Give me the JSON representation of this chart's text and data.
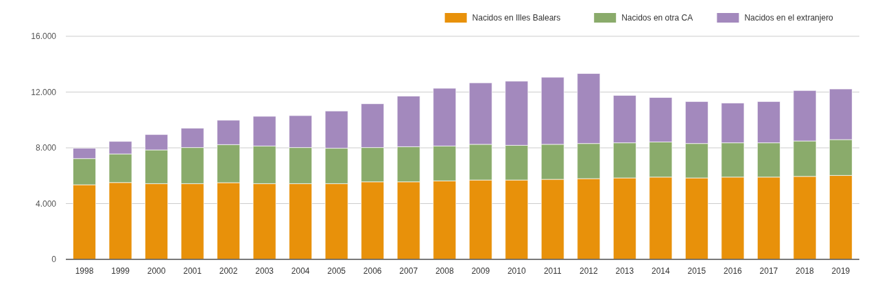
{
  "chart_data": {
    "type": "bar",
    "stacked": true,
    "grid": "y",
    "legend": "top right",
    "categories": [
      "1998",
      "1999",
      "2000",
      "2001",
      "2002",
      "2003",
      "2004",
      "2005",
      "2006",
      "2007",
      "2008",
      "2009",
      "2010",
      "2011",
      "2012",
      "2013",
      "2014",
      "2015",
      "2016",
      "2017",
      "2018",
      "2019"
    ],
    "series": [
      {
        "name": "Nacidos en Illes Balears",
        "color": "#e8910a",
        "values": [
          5350,
          5510,
          5430,
          5430,
          5500,
          5430,
          5430,
          5430,
          5560,
          5560,
          5630,
          5690,
          5690,
          5740,
          5790,
          5840,
          5900,
          5840,
          5900,
          5900,
          5950,
          6020
        ]
      },
      {
        "name": "Nacidos en otra CA",
        "color": "#8aab6b",
        "values": [
          1880,
          2050,
          2420,
          2590,
          2730,
          2700,
          2590,
          2540,
          2460,
          2520,
          2500,
          2560,
          2490,
          2510,
          2520,
          2520,
          2520,
          2470,
          2460,
          2460,
          2540,
          2570
        ]
      },
      {
        "name": "Nacidos en el extranjero",
        "color": "#a389bd",
        "values": [
          740,
          900,
          1100,
          1390,
          1750,
          2130,
          2290,
          2670,
          3140,
          3630,
          4140,
          4410,
          4600,
          4810,
          5020,
          3400,
          3190,
          3010,
          2850,
          2960,
          3620,
          3630
        ]
      }
    ],
    "ylim": [
      0,
      16000
    ],
    "yticks": [
      0,
      {
        "value": 4000,
        "label": "4.000"
      },
      {
        "value": 8000,
        "label": "8.000"
      },
      {
        "value": 12000,
        "label": "12.000"
      },
      {
        "value": 16000,
        "label": "16.000"
      }
    ]
  }
}
